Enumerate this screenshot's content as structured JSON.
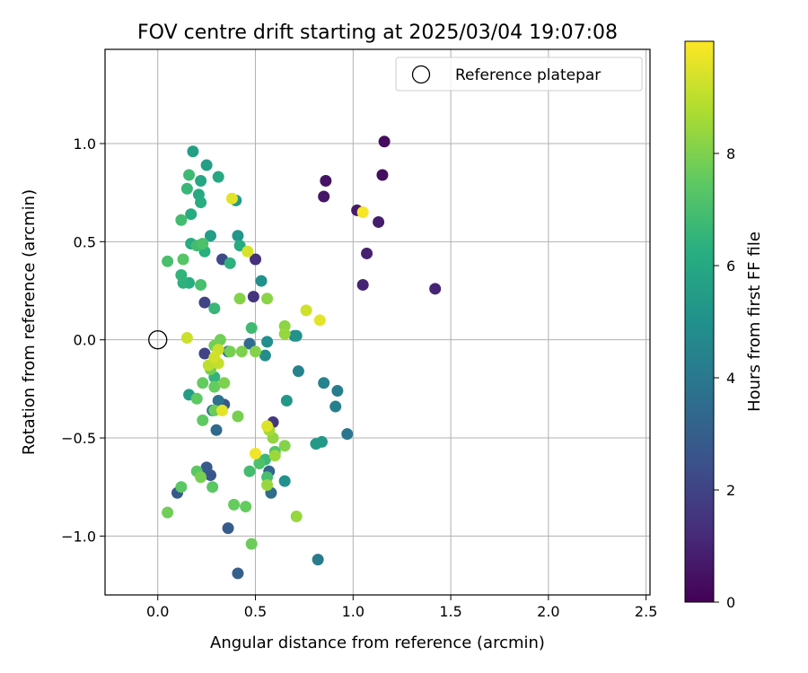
{
  "chart_data": {
    "type": "scatter",
    "title": "FOV centre drift starting at 2025/03/04 19:07:08",
    "xlabel": "Angular distance from reference (arcmin)",
    "ylabel": "Rotation from reference (arcmin)",
    "colorbar_label": "Hours from first FF file",
    "xlim": [
      -0.27,
      2.52
    ],
    "ylim": [
      -1.3,
      1.48
    ],
    "x_ticks": [
      0.0,
      0.5,
      1.0,
      1.5,
      2.0,
      2.5
    ],
    "x_tick_labels": [
      "0.0",
      "0.5",
      "1.0",
      "1.5",
      "2.0",
      "2.5"
    ],
    "y_ticks": [
      -1.0,
      -0.5,
      0.0,
      0.5,
      1.0
    ],
    "y_tick_labels": [
      "−1.0",
      "−0.5",
      "0.0",
      "0.5",
      "1.0"
    ],
    "colorbar_range": [
      0,
      10
    ],
    "colorbar_ticks": [
      0,
      2,
      4,
      6,
      8
    ],
    "colorbar_tick_labels": [
      "0",
      "2",
      "4",
      "6",
      "8"
    ],
    "colormap": "viridis",
    "grid": true,
    "legend": {
      "position": "top-right",
      "label": "Reference platepar",
      "marker": "open-circle"
    },
    "reference_point": {
      "x": 0.0,
      "y": 0.0
    },
    "points": [
      {
        "x": 1.16,
        "y": 1.01,
        "c": 0.3
      },
      {
        "x": 1.15,
        "y": 0.84,
        "c": 0.4
      },
      {
        "x": 0.86,
        "y": 0.81,
        "c": 0.5
      },
      {
        "x": 0.85,
        "y": 0.73,
        "c": 0.6
      },
      {
        "x": 1.02,
        "y": 0.66,
        "c": 0.7
      },
      {
        "x": 1.13,
        "y": 0.6,
        "c": 0.8
      },
      {
        "x": 1.07,
        "y": 0.44,
        "c": 0.9
      },
      {
        "x": 1.05,
        "y": 0.28,
        "c": 1.0
      },
      {
        "x": 1.42,
        "y": 0.26,
        "c": 1.0
      },
      {
        "x": 0.5,
        "y": 0.41,
        "c": 1.4
      },
      {
        "x": 0.49,
        "y": 0.22,
        "c": 1.5
      },
      {
        "x": 0.59,
        "y": -0.42,
        "c": 1.6
      },
      {
        "x": 0.24,
        "y": 0.19,
        "c": 2.0
      },
      {
        "x": 0.24,
        "y": -0.07,
        "c": 2.0
      },
      {
        "x": 0.33,
        "y": 0.41,
        "c": 2.2
      },
      {
        "x": 0.27,
        "y": -0.69,
        "c": 2.6
      },
      {
        "x": 0.34,
        "y": -0.33,
        "c": 2.7
      },
      {
        "x": 0.36,
        "y": -0.96,
        "c": 2.9
      },
      {
        "x": 0.1,
        "y": -0.78,
        "c": 2.8
      },
      {
        "x": 0.25,
        "y": -0.65,
        "c": 2.8
      },
      {
        "x": 0.41,
        "y": -1.19,
        "c": 3.0
      },
      {
        "x": 0.3,
        "y": -0.46,
        "c": 3.4
      },
      {
        "x": 0.57,
        "y": -0.67,
        "c": 3.3
      },
      {
        "x": 0.58,
        "y": -0.78,
        "c": 3.5
      },
      {
        "x": 0.47,
        "y": -0.02,
        "c": 3.5
      },
      {
        "x": 0.36,
        "y": -0.06,
        "c": 3.6
      },
      {
        "x": 0.31,
        "y": -0.31,
        "c": 3.7
      },
      {
        "x": 0.28,
        "y": -0.36,
        "c": 3.9
      },
      {
        "x": 0.97,
        "y": -0.48,
        "c": 3.9
      },
      {
        "x": 0.82,
        "y": -1.12,
        "c": 4.1
      },
      {
        "x": 0.92,
        "y": -0.26,
        "c": 4.2
      },
      {
        "x": 0.91,
        "y": -0.34,
        "c": 4.3
      },
      {
        "x": 0.85,
        "y": -0.22,
        "c": 4.4
      },
      {
        "x": 0.72,
        "y": -0.16,
        "c": 4.4
      },
      {
        "x": 0.7,
        "y": 0.02,
        "c": 4.6
      },
      {
        "x": 0.55,
        "y": -0.08,
        "c": 4.8
      },
      {
        "x": 0.56,
        "y": -0.01,
        "c": 4.9
      },
      {
        "x": 0.53,
        "y": 0.3,
        "c": 5.0
      },
      {
        "x": 0.65,
        "y": -0.72,
        "c": 5.0
      },
      {
        "x": 0.66,
        "y": -0.31,
        "c": 5.3
      },
      {
        "x": 0.84,
        "y": -0.52,
        "c": 5.3
      },
      {
        "x": 0.81,
        "y": -0.53,
        "c": 5.4
      },
      {
        "x": 0.71,
        "y": 0.02,
        "c": 5.1
      },
      {
        "x": 0.41,
        "y": 0.53,
        "c": 5.2
      },
      {
        "x": 0.4,
        "y": 0.71,
        "c": 5.4
      },
      {
        "x": 0.27,
        "y": 0.53,
        "c": 5.5
      },
      {
        "x": 0.25,
        "y": 0.89,
        "c": 5.6
      },
      {
        "x": 0.18,
        "y": 0.96,
        "c": 5.6
      },
      {
        "x": 0.16,
        "y": -0.28,
        "c": 5.5
      },
      {
        "x": 0.22,
        "y": 0.81,
        "c": 5.9
      },
      {
        "x": 0.21,
        "y": 0.74,
        "c": 6.0
      },
      {
        "x": 0.31,
        "y": 0.83,
        "c": 6.0
      },
      {
        "x": 0.22,
        "y": 0.7,
        "c": 6.2
      },
      {
        "x": 0.17,
        "y": 0.64,
        "c": 6.1
      },
      {
        "x": 0.17,
        "y": 0.49,
        "c": 6.1
      },
      {
        "x": 0.42,
        "y": 0.48,
        "c": 6.1
      },
      {
        "x": 0.24,
        "y": 0.45,
        "c": 6.3
      },
      {
        "x": 0.16,
        "y": 0.29,
        "c": 6.2
      },
      {
        "x": 0.37,
        "y": 0.39,
        "c": 6.4
      },
      {
        "x": 0.13,
        "y": 0.29,
        "c": 6.4
      },
      {
        "x": 0.12,
        "y": 0.33,
        "c": 6.5
      },
      {
        "x": 0.29,
        "y": -0.19,
        "c": 6.5
      },
      {
        "x": 0.29,
        "y": 0.16,
        "c": 6.6
      },
      {
        "x": 0.15,
        "y": 0.77,
        "c": 6.6
      },
      {
        "x": 0.16,
        "y": 0.84,
        "c": 6.8
      },
      {
        "x": 0.12,
        "y": 0.61,
        "c": 6.9
      },
      {
        "x": 0.2,
        "y": 0.48,
        "c": 6.9
      },
      {
        "x": 0.22,
        "y": 0.28,
        "c": 7.0
      },
      {
        "x": 0.05,
        "y": 0.4,
        "c": 7.0
      },
      {
        "x": 0.23,
        "y": 0.49,
        "c": 7.1
      },
      {
        "x": 0.13,
        "y": 0.41,
        "c": 7.3
      },
      {
        "x": 0.48,
        "y": 0.06,
        "c": 6.8
      },
      {
        "x": 0.55,
        "y": -0.61,
        "c": 6.7
      },
      {
        "x": 0.52,
        "y": -0.63,
        "c": 7.1
      },
      {
        "x": 0.47,
        "y": -0.67,
        "c": 6.9
      },
      {
        "x": 0.6,
        "y": -0.57,
        "c": 7.2
      },
      {
        "x": 0.56,
        "y": -0.7,
        "c": 7.0
      },
      {
        "x": 0.48,
        "y": -1.04,
        "c": 7.7
      },
      {
        "x": 0.45,
        "y": -0.85,
        "c": 7.6
      },
      {
        "x": 0.39,
        "y": -0.84,
        "c": 7.6
      },
      {
        "x": 0.2,
        "y": -0.67,
        "c": 7.4
      },
      {
        "x": 0.12,
        "y": -0.75,
        "c": 7.4
      },
      {
        "x": 0.28,
        "y": -0.75,
        "c": 7.4
      },
      {
        "x": 0.05,
        "y": -0.88,
        "c": 7.8
      },
      {
        "x": 0.22,
        "y": -0.7,
        "c": 7.9
      },
      {
        "x": 0.2,
        "y": -0.3,
        "c": 7.5
      },
      {
        "x": 0.23,
        "y": -0.22,
        "c": 7.6
      },
      {
        "x": 0.23,
        "y": -0.41,
        "c": 7.5
      },
      {
        "x": 0.29,
        "y": -0.36,
        "c": 7.7
      },
      {
        "x": 0.29,
        "y": -0.24,
        "c": 7.6
      },
      {
        "x": 0.27,
        "y": -0.15,
        "c": 7.8
      },
      {
        "x": 0.29,
        "y": -0.03,
        "c": 7.8
      },
      {
        "x": 0.32,
        "y": 0.0,
        "c": 7.8
      },
      {
        "x": 0.37,
        "y": -0.06,
        "c": 7.9
      },
      {
        "x": 0.34,
        "y": -0.22,
        "c": 8.0
      },
      {
        "x": 0.41,
        "y": -0.39,
        "c": 7.9
      },
      {
        "x": 0.43,
        "y": -0.06,
        "c": 8.0
      },
      {
        "x": 0.42,
        "y": 0.21,
        "c": 8.1
      },
      {
        "x": 0.5,
        "y": -0.06,
        "c": 8.1
      },
      {
        "x": 0.56,
        "y": 0.21,
        "c": 8.2
      },
      {
        "x": 0.65,
        "y": 0.07,
        "c": 8.2
      },
      {
        "x": 0.65,
        "y": 0.03,
        "c": 8.4
      },
      {
        "x": 0.59,
        "y": -0.5,
        "c": 8.3
      },
      {
        "x": 0.65,
        "y": -0.54,
        "c": 8.1
      },
      {
        "x": 0.6,
        "y": -0.59,
        "c": 8.5
      },
      {
        "x": 0.56,
        "y": -0.74,
        "c": 8.4
      },
      {
        "x": 0.71,
        "y": -0.9,
        "c": 8.4
      },
      {
        "x": 0.57,
        "y": -0.46,
        "c": 8.6
      },
      {
        "x": 0.26,
        "y": -0.13,
        "c": 9.0
      },
      {
        "x": 0.31,
        "y": -0.05,
        "c": 9.2
      },
      {
        "x": 0.31,
        "y": -0.12,
        "c": 9.1
      },
      {
        "x": 0.29,
        "y": -0.09,
        "c": 9.3
      },
      {
        "x": 0.33,
        "y": -0.36,
        "c": 9.6
      },
      {
        "x": 0.15,
        "y": 0.01,
        "c": 9.2
      },
      {
        "x": 0.46,
        "y": 0.45,
        "c": 9.4
      },
      {
        "x": 0.38,
        "y": 0.72,
        "c": 9.6
      },
      {
        "x": 0.56,
        "y": -0.44,
        "c": 9.5
      },
      {
        "x": 0.5,
        "y": -0.58,
        "c": 9.8
      },
      {
        "x": 0.76,
        "y": 0.15,
        "c": 9.3
      },
      {
        "x": 0.83,
        "y": 0.1,
        "c": 9.6
      },
      {
        "x": 1.05,
        "y": 0.65,
        "c": 9.9
      }
    ]
  }
}
